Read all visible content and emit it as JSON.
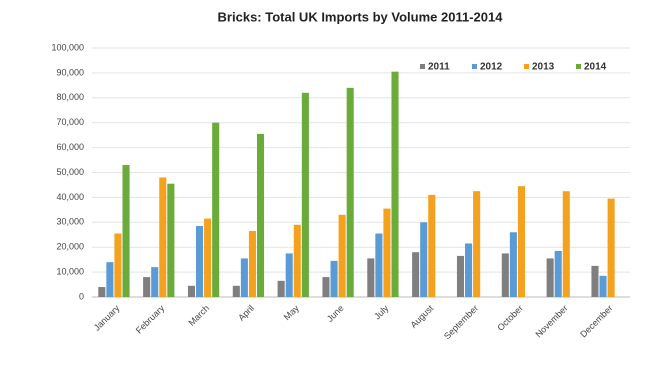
{
  "chart_data": {
    "type": "bar",
    "title": "Bricks: Total UK Imports by Volume 2011-2014",
    "categories": [
      "January",
      "February",
      "March",
      "April",
      "May",
      "June",
      "July",
      "August",
      "September",
      "October",
      "November",
      "December"
    ],
    "series": [
      {
        "name": "2011",
        "color": "#7f7f7f",
        "values": [
          4000,
          8000,
          4500,
          4500,
          6500,
          8000,
          15500,
          18000,
          16500,
          17500,
          15500,
          12500
        ]
      },
      {
        "name": "2012",
        "color": "#5b9bd5",
        "values": [
          14000,
          12000,
          28500,
          15500,
          17500,
          14500,
          25500,
          30000,
          21500,
          26000,
          18500,
          8500
        ]
      },
      {
        "name": "2013",
        "color": "#f4a11d",
        "values": [
          25500,
          48000,
          31500,
          26500,
          29000,
          33000,
          35500,
          41000,
          42500,
          44500,
          42500,
          39500
        ]
      },
      {
        "name": "2014",
        "color": "#6aab3a",
        "values": [
          53000,
          45500,
          70000,
          65500,
          82000,
          84000,
          90500,
          null,
          null,
          null,
          null,
          null
        ]
      }
    ],
    "ylim": [
      0,
      100000
    ],
    "yticks": [
      0,
      {
        "value": 10000,
        "label": "10,000"
      },
      {
        "value": 20000,
        "label": "20,000"
      },
      {
        "value": 30000,
        "label": "30,000"
      },
      {
        "value": 40000,
        "label": "40,000"
      },
      {
        "value": 50000,
        "label": "50,000"
      },
      {
        "value": 60000,
        "label": "60,000"
      },
      {
        "value": 70000,
        "label": "70,000"
      },
      {
        "value": 80000,
        "label": "80,000"
      },
      {
        "value": 90000,
        "label": "90,000"
      },
      {
        "value": 100000,
        "label": "100,000"
      }
    ],
    "grid": true,
    "legend": "top-right"
  }
}
